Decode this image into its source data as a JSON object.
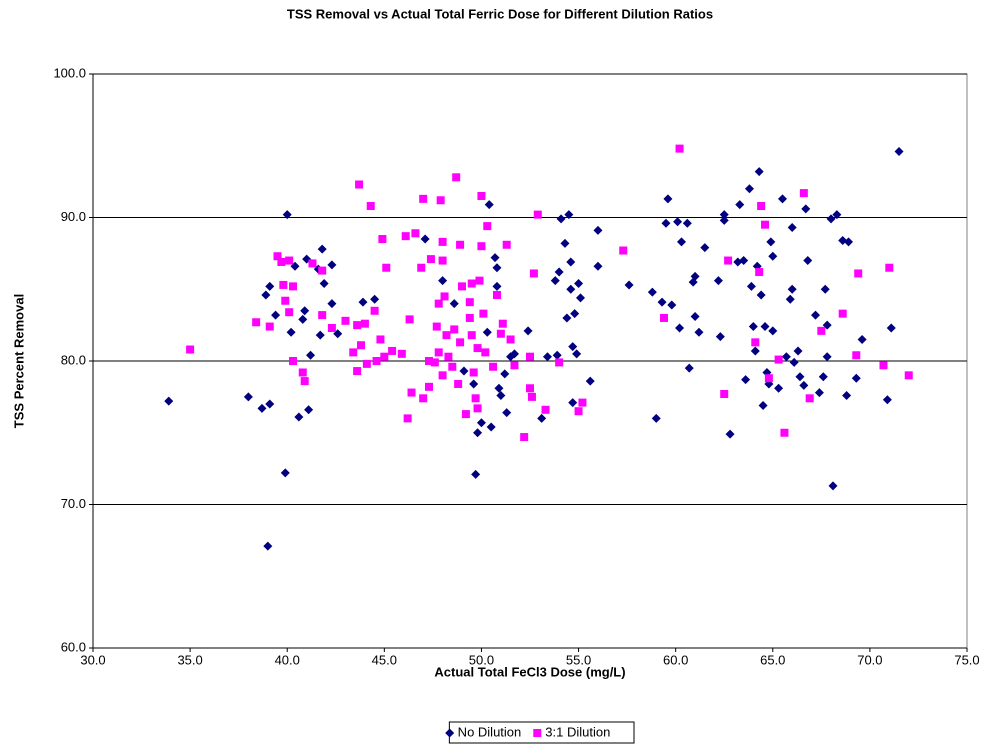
{
  "chart_data": {
    "type": "scatter",
    "title": "TSS Removal vs Actual Total Ferric Dose for Different Dilution Ratios",
    "x_label": "Actual Total FeCl3 Dose (mg/L)",
    "y_label": "TSS Percent Removal",
    "xlim": [
      30,
      75
    ],
    "ylim": [
      60,
      100
    ],
    "xticks": [
      {
        "value": 30,
        "label": "30.0"
      },
      {
        "value": 35,
        "label": "35.0"
      },
      {
        "value": 40,
        "label": "40.0"
      },
      {
        "value": 45,
        "label": "45.0"
      },
      {
        "value": 50,
        "label": "50.0"
      },
      {
        "value": 55,
        "label": "55.0"
      },
      {
        "value": 60,
        "label": "60.0"
      },
      {
        "value": 65,
        "label": "65.0"
      },
      {
        "value": 70,
        "label": "70.0"
      },
      {
        "value": 75,
        "label": "75.0"
      }
    ],
    "yticks": [
      {
        "value": 60,
        "label": "60.0"
      },
      {
        "value": 70,
        "label": "70.0"
      },
      {
        "value": 80,
        "label": "80.0"
      },
      {
        "value": 90,
        "label": "90.0"
      },
      {
        "value": 100,
        "label": "100.0"
      }
    ],
    "grid": true,
    "legend": "bottom",
    "series": [
      {
        "name": "No Dilution",
        "color": "#000080",
        "marker": "diamond",
        "points": [
          [
            33.9,
            77.2
          ],
          [
            38.0,
            77.5
          ],
          [
            38.7,
            76.7
          ],
          [
            39.1,
            77.0
          ],
          [
            39.0,
            67.1
          ],
          [
            39.9,
            72.2
          ],
          [
            38.9,
            84.6
          ],
          [
            39.1,
            85.2
          ],
          [
            39.4,
            83.2
          ],
          [
            40.0,
            90.2
          ],
          [
            40.2,
            82.0
          ],
          [
            40.4,
            86.6
          ],
          [
            40.6,
            76.1
          ],
          [
            40.8,
            82.9
          ],
          [
            40.9,
            83.5
          ],
          [
            41.0,
            87.1
          ],
          [
            41.1,
            76.6
          ],
          [
            41.2,
            80.4
          ],
          [
            41.6,
            86.4
          ],
          [
            41.7,
            81.8
          ],
          [
            41.8,
            87.8
          ],
          [
            41.9,
            85.4
          ],
          [
            42.3,
            86.7
          ],
          [
            42.3,
            84.0
          ],
          [
            42.6,
            81.9
          ],
          [
            43.9,
            84.1
          ],
          [
            44.5,
            84.3
          ],
          [
            47.1,
            88.5
          ],
          [
            48.0,
            85.6
          ],
          [
            48.6,
            84.0
          ],
          [
            49.1,
            79.3
          ],
          [
            49.6,
            78.4
          ],
          [
            49.7,
            72.1
          ],
          [
            49.8,
            75.0
          ],
          [
            50.0,
            75.7
          ],
          [
            50.3,
            82.0
          ],
          [
            50.4,
            90.9
          ],
          [
            50.5,
            75.4
          ],
          [
            50.7,
            87.2
          ],
          [
            50.8,
            86.5
          ],
          [
            50.8,
            85.2
          ],
          [
            50.9,
            78.1
          ],
          [
            51.0,
            77.6
          ],
          [
            51.2,
            79.1
          ],
          [
            51.3,
            76.4
          ],
          [
            51.5,
            80.3
          ],
          [
            51.7,
            80.5
          ],
          [
            52.4,
            82.1
          ],
          [
            53.1,
            76.0
          ],
          [
            53.4,
            80.3
          ],
          [
            53.8,
            85.6
          ],
          [
            53.9,
            80.4
          ],
          [
            54.0,
            86.2
          ],
          [
            54.1,
            89.9
          ],
          [
            54.3,
            88.2
          ],
          [
            54.4,
            83.0
          ],
          [
            54.5,
            90.2
          ],
          [
            54.6,
            86.9
          ],
          [
            54.6,
            85.0
          ],
          [
            54.7,
            81.0
          ],
          [
            54.7,
            77.1
          ],
          [
            54.8,
            83.3
          ],
          [
            54.9,
            80.5
          ],
          [
            55.0,
            85.4
          ],
          [
            55.1,
            84.4
          ],
          [
            55.6,
            78.6
          ],
          [
            56.0,
            86.6
          ],
          [
            56.0,
            89.1
          ],
          [
            57.6,
            85.3
          ],
          [
            58.8,
            84.8
          ],
          [
            59.0,
            76.0
          ],
          [
            59.3,
            84.1
          ],
          [
            59.5,
            89.6
          ],
          [
            59.6,
            91.3
          ],
          [
            59.8,
            83.9
          ],
          [
            60.1,
            89.7
          ],
          [
            60.2,
            82.3
          ],
          [
            60.3,
            88.3
          ],
          [
            60.6,
            89.6
          ],
          [
            60.7,
            79.5
          ],
          [
            60.9,
            85.5
          ],
          [
            61.0,
            85.9
          ],
          [
            61.0,
            83.1
          ],
          [
            61.2,
            82.0
          ],
          [
            61.5,
            87.9
          ],
          [
            62.2,
            85.6
          ],
          [
            62.3,
            81.7
          ],
          [
            62.5,
            89.8
          ],
          [
            62.5,
            90.2
          ],
          [
            62.8,
            74.9
          ],
          [
            63.2,
            86.9
          ],
          [
            63.3,
            90.9
          ],
          [
            63.5,
            87.0
          ],
          [
            63.6,
            78.7
          ],
          [
            63.8,
            92.0
          ],
          [
            63.9,
            85.2
          ],
          [
            64.0,
            82.4
          ],
          [
            64.1,
            80.7
          ],
          [
            64.2,
            86.6
          ],
          [
            64.3,
            93.2
          ],
          [
            64.4,
            84.6
          ],
          [
            64.5,
            76.9
          ],
          [
            64.6,
            82.4
          ],
          [
            64.7,
            79.2
          ],
          [
            64.8,
            78.4
          ],
          [
            64.9,
            88.3
          ],
          [
            65.0,
            82.1
          ],
          [
            65.0,
            87.3
          ],
          [
            65.3,
            78.1
          ],
          [
            65.5,
            91.3
          ],
          [
            65.7,
            80.3
          ],
          [
            65.9,
            84.3
          ],
          [
            66.0,
            89.3
          ],
          [
            66.0,
            85.0
          ],
          [
            66.1,
            79.9
          ],
          [
            66.3,
            80.7
          ],
          [
            66.4,
            78.9
          ],
          [
            66.6,
            78.3
          ],
          [
            66.7,
            90.6
          ],
          [
            66.8,
            87.0
          ],
          [
            67.2,
            83.2
          ],
          [
            67.4,
            77.8
          ],
          [
            67.6,
            78.9
          ],
          [
            67.7,
            85.0
          ],
          [
            67.8,
            82.5
          ],
          [
            67.8,
            80.3
          ],
          [
            68.0,
            89.9
          ],
          [
            68.1,
            71.3
          ],
          [
            68.3,
            90.2
          ],
          [
            68.6,
            88.4
          ],
          [
            68.8,
            77.6
          ],
          [
            68.9,
            88.3
          ],
          [
            69.3,
            78.8
          ],
          [
            69.6,
            81.5
          ],
          [
            70.9,
            77.3
          ],
          [
            71.1,
            82.3
          ],
          [
            71.5,
            94.6
          ]
        ]
      },
      {
        "name": "3:1 Dilution",
        "color": "#ff00ff",
        "marker": "square",
        "points": [
          [
            35.0,
            80.8
          ],
          [
            38.4,
            82.7
          ],
          [
            39.1,
            82.4
          ],
          [
            39.5,
            87.3
          ],
          [
            39.7,
            86.9
          ],
          [
            39.8,
            85.3
          ],
          [
            39.9,
            84.2
          ],
          [
            40.1,
            87.0
          ],
          [
            40.1,
            83.4
          ],
          [
            40.3,
            80.0
          ],
          [
            40.3,
            85.2
          ],
          [
            40.8,
            79.2
          ],
          [
            40.9,
            78.6
          ],
          [
            41.3,
            86.8
          ],
          [
            41.8,
            86.3
          ],
          [
            41.8,
            83.2
          ],
          [
            42.3,
            82.3
          ],
          [
            43.0,
            82.8
          ],
          [
            43.4,
            80.6
          ],
          [
            43.6,
            82.5
          ],
          [
            43.6,
            79.3
          ],
          [
            43.7,
            92.3
          ],
          [
            43.8,
            81.1
          ],
          [
            44.0,
            82.6
          ],
          [
            44.1,
            79.8
          ],
          [
            44.3,
            90.8
          ],
          [
            44.5,
            83.5
          ],
          [
            44.6,
            80.0
          ],
          [
            44.8,
            81.5
          ],
          [
            44.9,
            88.5
          ],
          [
            45.0,
            80.3
          ],
          [
            45.1,
            86.5
          ],
          [
            45.4,
            80.7
          ],
          [
            45.9,
            80.5
          ],
          [
            46.1,
            88.7
          ],
          [
            46.2,
            76.0
          ],
          [
            46.3,
            82.9
          ],
          [
            46.4,
            77.8
          ],
          [
            46.6,
            88.9
          ],
          [
            46.9,
            86.5
          ],
          [
            47.0,
            91.3
          ],
          [
            47.0,
            77.4
          ],
          [
            47.3,
            78.2
          ],
          [
            47.3,
            80.0
          ],
          [
            47.4,
            87.1
          ],
          [
            47.6,
            79.9
          ],
          [
            47.7,
            82.4
          ],
          [
            47.8,
            80.6
          ],
          [
            47.8,
            84.0
          ],
          [
            47.9,
            91.2
          ],
          [
            48.0,
            79.0
          ],
          [
            48.0,
            87.0
          ],
          [
            48.0,
            88.3
          ],
          [
            48.1,
            84.5
          ],
          [
            48.2,
            81.8
          ],
          [
            48.3,
            80.3
          ],
          [
            48.5,
            79.6
          ],
          [
            48.6,
            82.2
          ],
          [
            48.7,
            92.8
          ],
          [
            48.8,
            78.4
          ],
          [
            48.9,
            81.3
          ],
          [
            48.9,
            88.1
          ],
          [
            49.0,
            85.2
          ],
          [
            49.2,
            76.3
          ],
          [
            49.4,
            84.1
          ],
          [
            49.4,
            83.0
          ],
          [
            49.5,
            85.4
          ],
          [
            49.5,
            81.8
          ],
          [
            49.6,
            79.2
          ],
          [
            49.7,
            77.4
          ],
          [
            49.8,
            76.7
          ],
          [
            49.8,
            80.9
          ],
          [
            49.9,
            85.6
          ],
          [
            50.0,
            91.5
          ],
          [
            50.0,
            88.0
          ],
          [
            50.1,
            83.3
          ],
          [
            50.2,
            80.6
          ],
          [
            50.3,
            89.4
          ],
          [
            50.6,
            79.6
          ],
          [
            50.8,
            84.6
          ],
          [
            51.0,
            81.9
          ],
          [
            51.1,
            82.6
          ],
          [
            51.3,
            88.1
          ],
          [
            51.5,
            81.5
          ],
          [
            51.7,
            79.7
          ],
          [
            52.2,
            74.7
          ],
          [
            52.5,
            80.3
          ],
          [
            52.5,
            78.1
          ],
          [
            52.6,
            77.5
          ],
          [
            52.7,
            86.1
          ],
          [
            52.9,
            90.2
          ],
          [
            53.3,
            76.6
          ],
          [
            54.0,
            79.9
          ],
          [
            55.0,
            76.5
          ],
          [
            55.2,
            77.1
          ],
          [
            57.3,
            87.7
          ],
          [
            59.4,
            83.0
          ],
          [
            60.2,
            94.8
          ],
          [
            62.5,
            77.7
          ],
          [
            62.7,
            87.0
          ],
          [
            64.1,
            81.3
          ],
          [
            64.3,
            86.2
          ],
          [
            64.4,
            90.8
          ],
          [
            64.6,
            89.5
          ],
          [
            64.8,
            78.8
          ],
          [
            65.3,
            80.1
          ],
          [
            65.6,
            75.0
          ],
          [
            66.6,
            91.7
          ],
          [
            66.9,
            77.4
          ],
          [
            67.5,
            82.1
          ],
          [
            68.6,
            83.3
          ],
          [
            69.3,
            80.4
          ],
          [
            69.4,
            86.1
          ],
          [
            70.7,
            79.7
          ],
          [
            71.0,
            86.5
          ],
          [
            72.0,
            79.0
          ]
        ]
      }
    ]
  }
}
